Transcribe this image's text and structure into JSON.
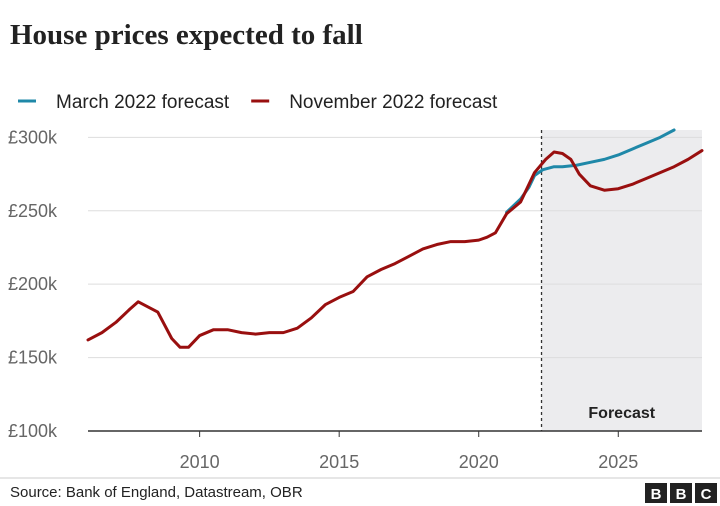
{
  "chart_data": {
    "type": "line",
    "title": "House prices expected to fall",
    "source": "Source: Bank of England, Datastream, OBR",
    "logo": [
      "B",
      "B",
      "C"
    ],
    "legend": "top",
    "grid": true,
    "xlim": [
      2006,
      2028
    ],
    "xticks": [
      2010,
      2015,
      2020,
      2025
    ],
    "ylim": [
      100,
      305
    ],
    "yticks": [
      {
        "value": 100,
        "label": "£100k"
      },
      {
        "value": 150,
        "label": "£150k"
      },
      {
        "value": 200,
        "label": "£200k"
      },
      {
        "value": 250,
        "label": "£250k"
      },
      {
        "value": 300,
        "label": "£300k"
      }
    ],
    "forecast_start": 2022.25,
    "forecast_label": "Forecast",
    "forecast_color": "#ececee",
    "series": [
      {
        "name": "March 2022 forecast",
        "color": "#1f88a8",
        "x": [
          2021.0,
          2021.5,
          2021.8,
          2022.0,
          2022.3,
          2022.7,
          2023.0,
          2023.5,
          2024.0,
          2024.5,
          2025.0,
          2025.5,
          2026.0,
          2026.5,
          2027.0
        ],
        "values": [
          249,
          258,
          266,
          274,
          278,
          280,
          280,
          281,
          283,
          285,
          288,
          292,
          296,
          300,
          305
        ]
      },
      {
        "name": "November 2022 forecast",
        "color": "#990f0f",
        "x": [
          2006.0,
          2006.5,
          2007.0,
          2007.5,
          2007.8,
          2008.5,
          2009.0,
          2009.3,
          2009.6,
          2010.0,
          2010.5,
          2011.0,
          2011.5,
          2012.0,
          2012.5,
          2013.0,
          2013.5,
          2014.0,
          2014.5,
          2015.0,
          2015.5,
          2016.0,
          2016.5,
          2017.0,
          2017.5,
          2018.0,
          2018.5,
          2019.0,
          2019.5,
          2020.0,
          2020.3,
          2020.6,
          2021.0,
          2021.5,
          2021.8,
          2022.0,
          2022.4,
          2022.7,
          2023.0,
          2023.3,
          2023.6,
          2024.0,
          2024.5,
          2025.0,
          2025.5,
          2026.0,
          2026.5,
          2027.0,
          2027.5,
          2028.0
        ],
        "values": [
          162,
          167,
          174,
          183,
          188,
          181,
          163,
          157,
          157,
          165,
          169,
          169,
          167,
          166,
          167,
          167,
          170,
          177,
          186,
          191,
          195,
          205,
          210,
          214,
          219,
          224,
          227,
          229,
          229,
          230,
          232,
          235,
          248,
          256,
          268,
          276,
          285,
          290,
          289,
          285,
          275,
          267,
          264,
          265,
          268,
          272,
          276,
          280,
          285,
          291
        ]
      }
    ]
  }
}
